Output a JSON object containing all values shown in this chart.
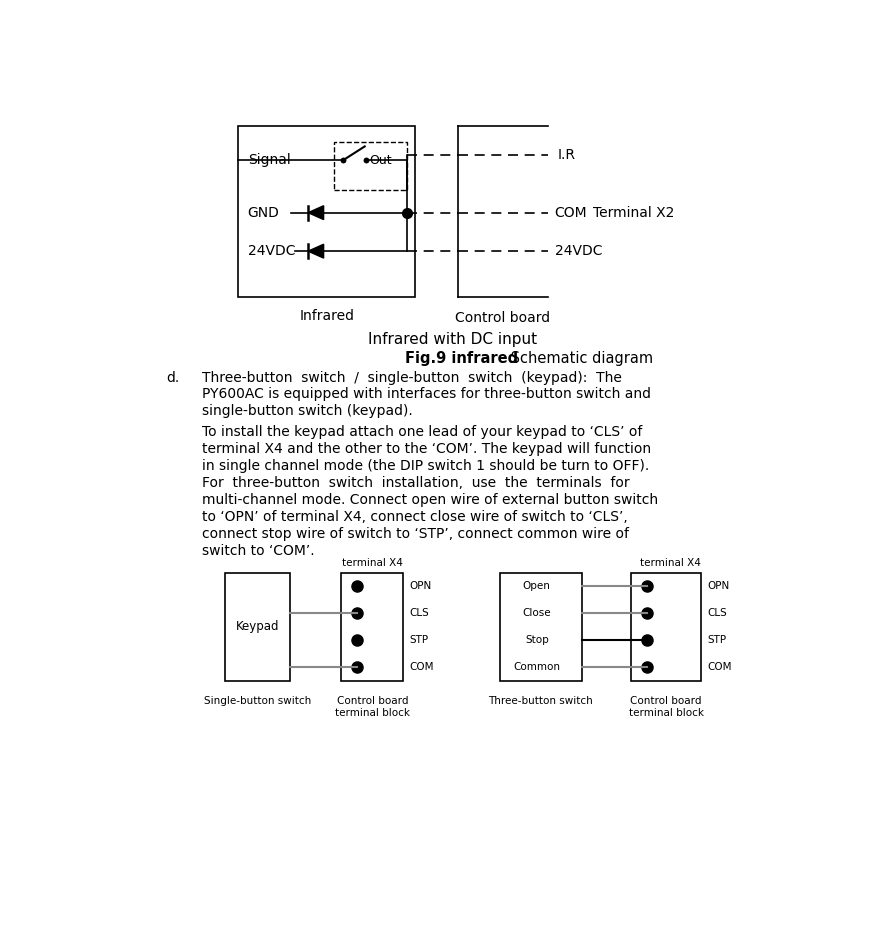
{
  "bg_color": "#ffffff",
  "fig_width": 8.84,
  "fig_height": 9.38,
  "title_text": "Infrared with DC input",
  "fig9_bold": "Fig.9 infrared",
  "fig9_normal": " Schematic diagram",
  "item_d_label": "d.",
  "infrared_label": "Infrared",
  "control_board_label": "Control board",
  "terminal_x2_label": "Terminal X2",
  "signal_label": "Signal",
  "out_label": "Out",
  "gnd_label": "GND",
  "vdc_label": "24VDC",
  "ir_label": "I.R",
  "com_label": "COM",
  "vdc2_label": "24VDC",
  "terminal_x4_label": "terminal X4",
  "opn_label": "OPN",
  "cls_label": "CLS",
  "stp_label": "STP",
  "com2_label": "COM",
  "keypad_label": "Keypad",
  "open_label": "Open",
  "close_label": "Close",
  "stop_label": "Stop",
  "common_label": "Common",
  "single_switch_label": "Single-button switch",
  "ctrl_board_terminal1": "Control board\nterminal block",
  "three_switch_label": "Three-button switch",
  "ctrl_board_terminal2": "Control board\nterminal block",
  "p1_lines": [
    "Three-button  switch  /  single-button  switch  (keypad):  The",
    "PY600AC is equipped with interfaces for three-button switch and",
    "single-button switch (keypad)."
  ],
  "p2_lines": [
    "To install the keypad attach one lead of your keypad to ‘CLS’ of",
    "terminal X4 and the other to the ‘COM’. The keypad will function",
    "in single channel mode (the DIP switch 1 should be turn to OFF).",
    "For  three-button  switch  installation,  use  the  terminals  for",
    "multi-channel mode. Connect open wire of external button switch",
    "to ‘OPN’ of terminal X4, connect close wire of switch to ‘CLS’,",
    "connect stop wire of switch to ‘STP’, connect common wire of",
    "switch to ‘COM’."
  ],
  "line_color": "#000000",
  "gray_color": "#888888",
  "font_size_main": 10,
  "font_size_small": 7.5
}
